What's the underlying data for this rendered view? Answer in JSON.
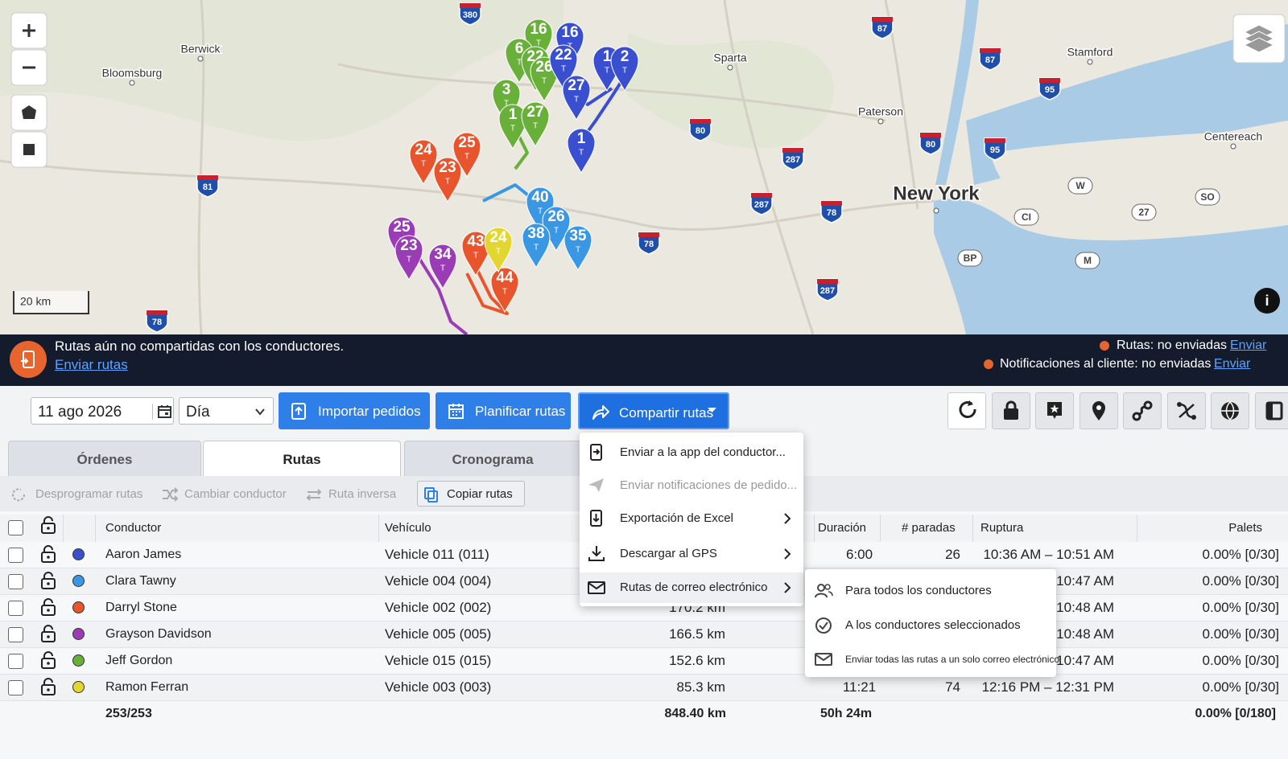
{
  "map": {
    "scale": "20 km",
    "places": [
      "Berwick",
      "Bloomsburg",
      "Sparta",
      "Paterson",
      "Stamford",
      "Centereach",
      "New York"
    ],
    "interstates": [
      "380",
      "87",
      "87",
      "81",
      "80",
      "80",
      "287",
      "287",
      "287",
      "78",
      "78",
      "78",
      "95",
      "95"
    ],
    "local_roads": [
      "W",
      "SO",
      "CI",
      "27",
      "BP",
      "M"
    ],
    "marker_suffix": "T",
    "markers": [
      {
        "label": "16",
        "route": 4
      },
      {
        "label": "6",
        "route": 4
      },
      {
        "label": "22",
        "route": 4
      },
      {
        "label": "26",
        "route": 4
      },
      {
        "label": "3",
        "route": 4
      },
      {
        "label": "1",
        "route": 4
      },
      {
        "label": "27",
        "route": 4
      },
      {
        "label": "16",
        "route": 0
      },
      {
        "label": "22",
        "route": 0
      },
      {
        "label": "1",
        "route": 0
      },
      {
        "label": "2",
        "route": 0
      },
      {
        "label": "27",
        "route": 0
      },
      {
        "label": "1",
        "route": 0
      },
      {
        "label": "24",
        "route": 2
      },
      {
        "label": "25",
        "route": 2
      },
      {
        "label": "23",
        "route": 2
      },
      {
        "label": "43",
        "route": 2
      },
      {
        "label": "44",
        "route": 2
      },
      {
        "label": "40",
        "route": 1
      },
      {
        "label": "26",
        "route": 1
      },
      {
        "label": "38",
        "route": 1
      },
      {
        "label": "35",
        "route": 1
      },
      {
        "label": "24",
        "route": 5
      },
      {
        "label": "25",
        "route": 3
      },
      {
        "label": "23",
        "route": 3
      },
      {
        "label": "34",
        "route": 3
      }
    ]
  },
  "banner": {
    "message": "Rutas aún no compartidas con los conductores.",
    "link": "Enviar rutas",
    "routes_status": "Rutas: no enviadas",
    "routes_action": "Enviar",
    "notifications_status": "Notificaciones al cliente: no enviadas",
    "notifications_action": "Enviar"
  },
  "toolbar": {
    "date": "11 ago 2026",
    "period": "Día",
    "import": "Importar pedidos",
    "plan": "Planificar rutas",
    "share": "Compartir rutas"
  },
  "tabs": [
    "Órdenes",
    "Rutas",
    "Cronograma"
  ],
  "actions": [
    "Desprogramar rutas",
    "Cambiar conductor",
    "Ruta inversa",
    "Copiar rutas"
  ],
  "table": {
    "headers": {
      "driver": "Conductor",
      "vehicle": "Vehículo",
      "duration": "Duración",
      "stops": "# paradas",
      "break": "Ruptura",
      "pallets": "Palets"
    },
    "rows": [
      {
        "driver": "Aaron James",
        "color": "#3a4fd0",
        "vehicle": "Vehicle 011 (011)",
        "distance": null,
        "duration": "6:00",
        "stops": 26,
        "break": "10:36 AM – 10:51 AM",
        "pallets": "0.00% [0/30]"
      },
      {
        "driver": "Clara Tawny",
        "color": "#3a97e3",
        "vehicle": "Vehicle 004 (004)",
        "distance": null,
        "duration": null,
        "stops": null,
        "break": "10:47 AM",
        "pallets": "0.00% [0/30]"
      },
      {
        "driver": "Darryl Stone",
        "color": "#e8542c",
        "vehicle": "Vehicle 002 (002)",
        "distance": "170.2 km",
        "duration": null,
        "stops": null,
        "break": "10:48 AM",
        "pallets": "0.00% [0/30]"
      },
      {
        "driver": "Grayson Davidson",
        "color": "#9a3cb6",
        "vehicle": "Vehicle 005 (005)",
        "distance": "166.5 km",
        "duration": null,
        "stops": null,
        "break": "10:48 AM",
        "pallets": "0.00% [0/30]"
      },
      {
        "driver": "Jeff Gordon",
        "color": "#69b03a",
        "vehicle": "Vehicle 015 (015)",
        "distance": "152.6 km",
        "duration": null,
        "stops": null,
        "break": "10:47 AM",
        "pallets": "0.00% [0/30]"
      },
      {
        "driver": "Ramon Ferran",
        "color": "#e3d631",
        "vehicle": "Vehicle 003 (003)",
        "distance": "85.3 km",
        "duration": "11:21",
        "stops": 74,
        "break": "12:16 PM – 12:31 PM",
        "pallets": "0.00% [0/30]"
      }
    ],
    "totals": {
      "orders": "253/253",
      "distance": "848.40 km",
      "duration": "50h 24m",
      "pallets": "0.00% [0/180]"
    }
  },
  "share_menu": {
    "items": [
      "Enviar a la app del conductor...",
      "Enviar notificaciones de pedido...",
      "Exportación de Excel",
      "Descargar al GPS",
      "Rutas de correo electrónico"
    ],
    "email_submenu": [
      "Para todos los conductores",
      "A los conductores seleccionados",
      "Enviar todas las rutas a un solo correo electrónico"
    ]
  }
}
